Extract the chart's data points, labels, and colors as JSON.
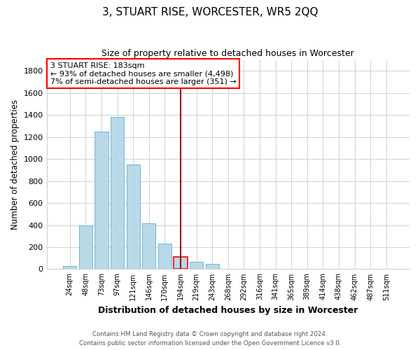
{
  "title": "3, STUART RISE, WORCESTER, WR5 2QQ",
  "subtitle": "Size of property relative to detached houses in Worcester",
  "xlabel": "Distribution of detached houses by size in Worcester",
  "ylabel": "Number of detached properties",
  "bar_labels": [
    "24sqm",
    "48sqm",
    "73sqm",
    "97sqm",
    "121sqm",
    "146sqm",
    "170sqm",
    "194sqm",
    "219sqm",
    "243sqm",
    "268sqm",
    "292sqm",
    "316sqm",
    "341sqm",
    "365sqm",
    "389sqm",
    "414sqm",
    "438sqm",
    "462sqm",
    "487sqm",
    "511sqm"
  ],
  "bar_values": [
    25,
    395,
    1248,
    1380,
    948,
    415,
    230,
    110,
    68,
    48,
    5,
    2,
    2,
    1,
    0,
    0,
    0,
    0,
    0,
    0,
    0
  ],
  "bar_color": "#b8d9e8",
  "bar_edge_color": "#7ab3cc",
  "highlight_bar_index": 7,
  "highlight_bar_edge_color": "red",
  "vline_color": "#a00000",
  "annotation_title": "3 STUART RISE: 183sqm",
  "annotation_line1": "← 93% of detached houses are smaller (4,498)",
  "annotation_line2": "7% of semi-detached houses are larger (351) →",
  "ylim": [
    0,
    1900
  ],
  "yticks": [
    0,
    200,
    400,
    600,
    800,
    1000,
    1200,
    1400,
    1600,
    1800
  ],
  "footer1": "Contains HM Land Registry data © Crown copyright and database right 2024.",
  "footer2": "Contains public sector information licensed under the Open Government Licence v3.0.",
  "figsize": [
    6.0,
    5.0
  ],
  "dpi": 100
}
